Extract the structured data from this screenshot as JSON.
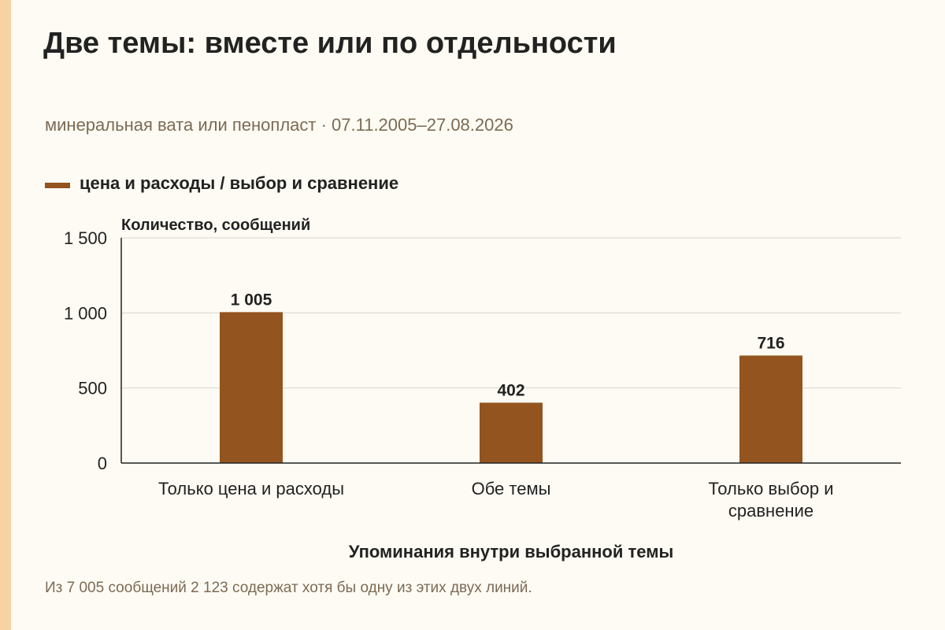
{
  "title": "Две темы: вместе или по отдельности",
  "subtitle": "минеральная вата или пенопласт · 07.11.2005–27.08.2026",
  "footnote": "Из 7 005 сообщений 2 123 содержат хотя бы одну из этих двух линий.",
  "colors": {
    "bar": "#93541f",
    "accent_stripe": "#f7d3a3",
    "background": "#fdfbf3",
    "grid": "#dcd6c8",
    "text": "#222222",
    "muted_text": "#7c6a55"
  },
  "chart_data": {
    "type": "bar",
    "categories": [
      [
        "Только цена и расходы"
      ],
      [
        "Обе темы"
      ],
      [
        "Только выбор и",
        "сравнение"
      ]
    ],
    "series": [
      {
        "name": "цена и расходы / выбор и сравнение",
        "values": [
          1005,
          402,
          716
        ]
      }
    ],
    "value_labels": [
      "1 005",
      "402",
      "716"
    ],
    "ylabel": "Количество, сообщений",
    "xlabel": "Упоминания внутри выбранной темы",
    "ylim": [
      0,
      1500
    ],
    "yticks": [
      0,
      500,
      1000,
      1500
    ],
    "ytick_labels": [
      "0",
      "500",
      "1 000",
      "1 500"
    ],
    "grid": true,
    "legend_position": "top-left"
  }
}
